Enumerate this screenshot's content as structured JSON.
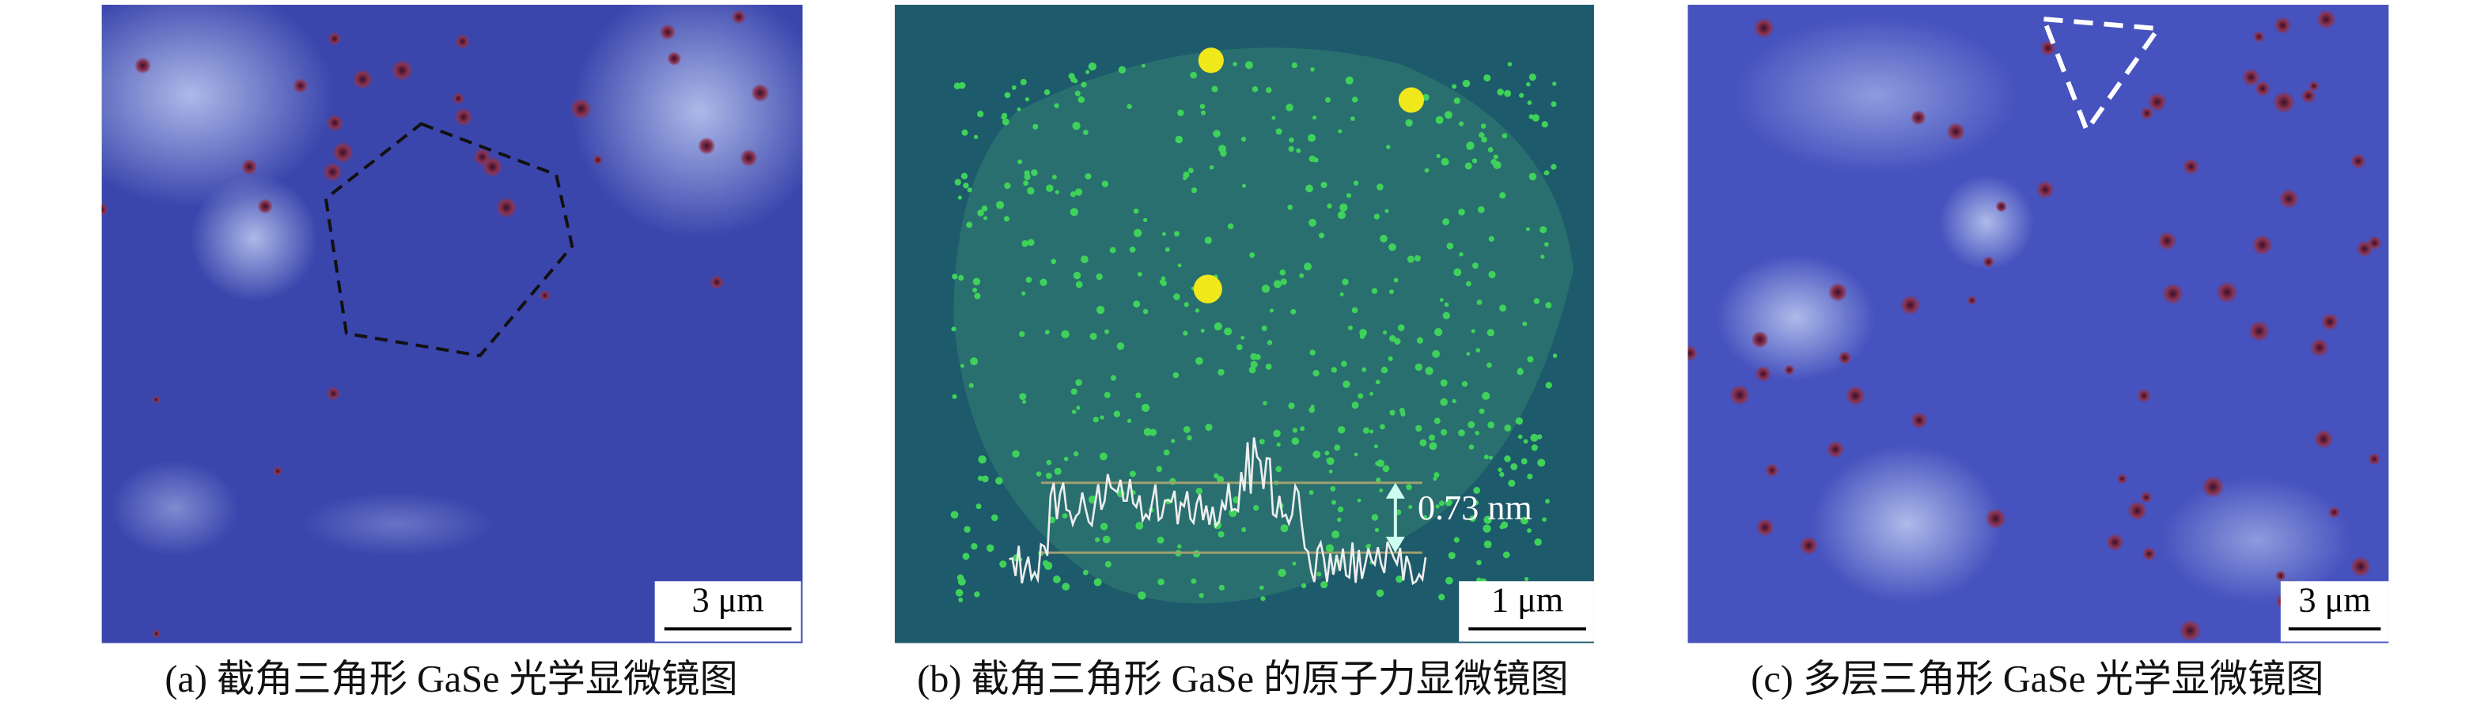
{
  "panels": [
    {
      "caption": "(a) 截角三角形 GaSe 光学显微镜图",
      "scale_bar": "3 μm"
    },
    {
      "caption": "(b) 截角三角形 GaSe 的原子力显微镜图",
      "scale_bar": "1 μm",
      "annotation": "0.73 nm"
    },
    {
      "caption": "(c) 多层三角形 GaSe 光学显微镜图",
      "scale_bar": "3 μm"
    }
  ]
}
